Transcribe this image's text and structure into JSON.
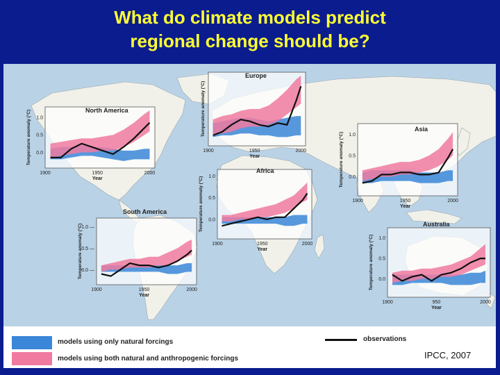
{
  "title": {
    "line1": "What do climate models predict",
    "line2": "regional change should be?"
  },
  "colors": {
    "background": "#0b1c8e",
    "title": "#ffff33",
    "ocean": "#b9d2e6",
    "land": "#f1f1ea",
    "natural_band": "#3a86d8",
    "anthropogenic_band": "#f07aa0",
    "observations": "#111111"
  },
  "legend": {
    "natural": "models using only natural forcings",
    "both": "models using both natural and anthropogenic forcings",
    "observations": "observations"
  },
  "credit": "IPCC, 2007",
  "chart_data": [
    {
      "type": "line",
      "title": "North America",
      "xlabel": "Year",
      "ylabel": "Temperature anomaly (°C)",
      "xticks": [
        "1900",
        "1950",
        "2000"
      ],
      "yticks": [
        "0.0",
        "0.5",
        "1.0"
      ],
      "xlim": [
        1900,
        2005
      ],
      "ylim": [
        -0.45,
        1.3
      ],
      "x": [
        1905,
        1915,
        1925,
        1935,
        1945,
        1955,
        1965,
        1975,
        1985,
        1995,
        2000
      ],
      "observations": [
        -0.15,
        -0.15,
        0.1,
        0.25,
        0.15,
        0.05,
        -0.05,
        0.15,
        0.4,
        0.7,
        0.85
      ],
      "natural_band": {
        "lower": [
          -0.2,
          -0.2,
          -0.15,
          -0.1,
          -0.1,
          -0.15,
          -0.2,
          -0.25,
          -0.2,
          -0.2,
          -0.2
        ],
        "upper": [
          0.1,
          0.15,
          0.15,
          0.2,
          0.15,
          0.15,
          0.1,
          0.05,
          0.05,
          0.1,
          0.1
        ]
      },
      "anthro_band": {
        "lower": [
          -0.15,
          -0.1,
          -0.05,
          0.0,
          0.0,
          0.05,
          0.05,
          0.15,
          0.3,
          0.5,
          0.6
        ],
        "upper": [
          0.25,
          0.3,
          0.35,
          0.4,
          0.4,
          0.45,
          0.5,
          0.65,
          0.85,
          1.1,
          1.2
        ]
      }
    },
    {
      "type": "line",
      "title": "Europe",
      "xlabel": "Year",
      "ylabel": "Temperature anomaly (°C)",
      "xticks": [
        "1900",
        "1950",
        "2000"
      ],
      "yticks": [],
      "xlim": [
        1900,
        2005
      ],
      "ylim": [
        -0.6,
        1.5
      ],
      "x": [
        1905,
        1915,
        1925,
        1935,
        1945,
        1955,
        1965,
        1975,
        1985,
        1995,
        2000
      ],
      "observations": [
        -0.3,
        -0.2,
        0.0,
        0.15,
        0.1,
        0.0,
        -0.05,
        0.05,
        0.0,
        0.7,
        1.1
      ],
      "natural_band": {
        "lower": [
          -0.35,
          -0.3,
          -0.3,
          -0.25,
          -0.25,
          -0.3,
          -0.3,
          -0.35,
          -0.35,
          -0.3,
          -0.3
        ],
        "upper": [
          0.05,
          0.1,
          0.15,
          0.2,
          0.2,
          0.15,
          0.1,
          0.15,
          0.2,
          0.25,
          0.25
        ]
      },
      "anthro_band": {
        "lower": [
          -0.3,
          -0.25,
          -0.2,
          -0.1,
          -0.05,
          -0.05,
          0.0,
          0.1,
          0.3,
          0.5,
          0.6
        ],
        "upper": [
          0.15,
          0.25,
          0.3,
          0.4,
          0.45,
          0.45,
          0.55,
          0.75,
          1.0,
          1.3,
          1.4
        ]
      }
    },
    {
      "type": "line",
      "title": "Asia",
      "xlabel": "Year",
      "ylabel": "Temperature anomaly (°C)",
      "xticks": [
        "1900",
        "1950",
        "2000"
      ],
      "yticks": [
        "0.0",
        "0.5",
        "1.0"
      ],
      "xlim": [
        1900,
        2005
      ],
      "ylim": [
        -0.45,
        1.25
      ],
      "x": [
        1905,
        1915,
        1925,
        1935,
        1945,
        1955,
        1965,
        1975,
        1985,
        1995,
        2000
      ],
      "observations": [
        -0.15,
        -0.1,
        0.05,
        0.05,
        0.1,
        0.1,
        0.05,
        0.05,
        0.1,
        0.45,
        0.65
      ],
      "natural_band": {
        "lower": [
          -0.15,
          -0.15,
          -0.1,
          -0.1,
          -0.1,
          -0.1,
          -0.15,
          -0.15,
          -0.15,
          -0.1,
          -0.1
        ],
        "upper": [
          0.1,
          0.15,
          0.15,
          0.15,
          0.15,
          0.15,
          0.1,
          0.1,
          0.1,
          0.15,
          0.15
        ]
      },
      "anthro_band": {
        "lower": [
          -0.1,
          -0.05,
          0.0,
          0.0,
          0.05,
          0.05,
          0.1,
          0.15,
          0.25,
          0.4,
          0.5
        ],
        "upper": [
          0.15,
          0.2,
          0.25,
          0.3,
          0.35,
          0.35,
          0.4,
          0.5,
          0.65,
          0.9,
          1.05
        ]
      }
    },
    {
      "type": "line",
      "title": "Africa",
      "xlabel": "Year",
      "ylabel": "Temperature anomaly (°C)",
      "xticks": [
        "1900",
        "1950",
        "2000"
      ],
      "yticks": [
        "0.0",
        "0.5",
        "1.0"
      ],
      "xlim": [
        1900,
        2005
      ],
      "ylim": [
        -0.45,
        1.15
      ],
      "x": [
        1905,
        1915,
        1925,
        1935,
        1945,
        1955,
        1965,
        1975,
        1985,
        1995,
        2000
      ],
      "observations": [
        -0.15,
        -0.1,
        -0.05,
        0.0,
        0.05,
        0.0,
        0.05,
        0.05,
        0.25,
        0.45,
        0.6
      ],
      "natural_band": {
        "lower": [
          -0.1,
          -0.1,
          -0.1,
          -0.1,
          -0.1,
          -0.1,
          -0.1,
          -0.15,
          -0.15,
          -0.1,
          -0.1
        ],
        "upper": [
          0.05,
          0.05,
          0.05,
          0.05,
          0.05,
          0.05,
          0.05,
          0.05,
          0.1,
          0.1,
          0.1
        ]
      },
      "anthro_band": {
        "lower": [
          -0.05,
          -0.05,
          0.0,
          0.0,
          0.05,
          0.05,
          0.1,
          0.15,
          0.25,
          0.4,
          0.45
        ],
        "upper": [
          0.1,
          0.1,
          0.15,
          0.2,
          0.25,
          0.3,
          0.35,
          0.45,
          0.55,
          0.75,
          0.85
        ]
      }
    },
    {
      "type": "line",
      "title": "South America",
      "xlabel": "Year",
      "ylabel": "Temperature anomaly (°C)",
      "xticks": [
        "1900",
        "1950",
        "2000"
      ],
      "yticks": [
        "0.0 —",
        "0.5 —",
        "1.0 —"
      ],
      "xlim": [
        1900,
        2005
      ],
      "ylim": [
        -0.35,
        1.2
      ],
      "x": [
        1905,
        1915,
        1925,
        1935,
        1945,
        1955,
        1965,
        1975,
        1985,
        1995,
        2000
      ],
      "observations": [
        -0.1,
        -0.15,
        0.0,
        0.15,
        0.1,
        0.1,
        0.05,
        0.1,
        0.2,
        0.35,
        0.45
      ],
      "natural_band": {
        "lower": [
          -0.05,
          -0.05,
          -0.05,
          -0.05,
          -0.05,
          -0.05,
          -0.05,
          -0.1,
          -0.1,
          -0.05,
          -0.05
        ],
        "upper": [
          0.1,
          0.1,
          0.1,
          0.1,
          0.1,
          0.1,
          0.1,
          0.1,
          0.1,
          0.15,
          0.15
        ]
      },
      "anthro_band": {
        "lower": [
          -0.05,
          0.0,
          0.0,
          0.05,
          0.05,
          0.05,
          0.1,
          0.1,
          0.2,
          0.3,
          0.35
        ],
        "upper": [
          0.1,
          0.15,
          0.2,
          0.25,
          0.25,
          0.3,
          0.3,
          0.4,
          0.5,
          0.65,
          0.7
        ]
      }
    },
    {
      "type": "line",
      "title": "Australia",
      "xlabel": "Year",
      "ylabel": "Temperature anomaly (°C)",
      "xticks": [
        "1900",
        "950",
        "2000"
      ],
      "yticks": [
        "0.0",
        "0.5",
        "1.0"
      ],
      "xlim": [
        1900,
        2005
      ],
      "ylim": [
        -0.45,
        1.25
      ],
      "x": [
        1905,
        1915,
        1925,
        1935,
        1945,
        1955,
        1965,
        1975,
        1985,
        1995,
        2000
      ],
      "observations": [
        0.1,
        -0.05,
        0.05,
        0.1,
        -0.05,
        0.1,
        0.15,
        0.25,
        0.4,
        0.5,
        0.5
      ],
      "natural_band": {
        "lower": [
          -0.15,
          -0.15,
          -0.1,
          -0.1,
          -0.1,
          -0.1,
          -0.15,
          -0.15,
          -0.15,
          -0.1,
          -0.1
        ],
        "upper": [
          0.1,
          0.1,
          0.1,
          0.1,
          0.1,
          0.1,
          0.1,
          0.1,
          0.15,
          0.15,
          0.2
        ]
      },
      "anthro_band": {
        "lower": [
          -0.1,
          -0.05,
          -0.05,
          0.0,
          0.0,
          0.05,
          0.05,
          0.1,
          0.2,
          0.3,
          0.35
        ],
        "upper": [
          0.15,
          0.2,
          0.2,
          0.25,
          0.25,
          0.3,
          0.35,
          0.45,
          0.55,
          0.75,
          0.85
        ]
      }
    }
  ]
}
